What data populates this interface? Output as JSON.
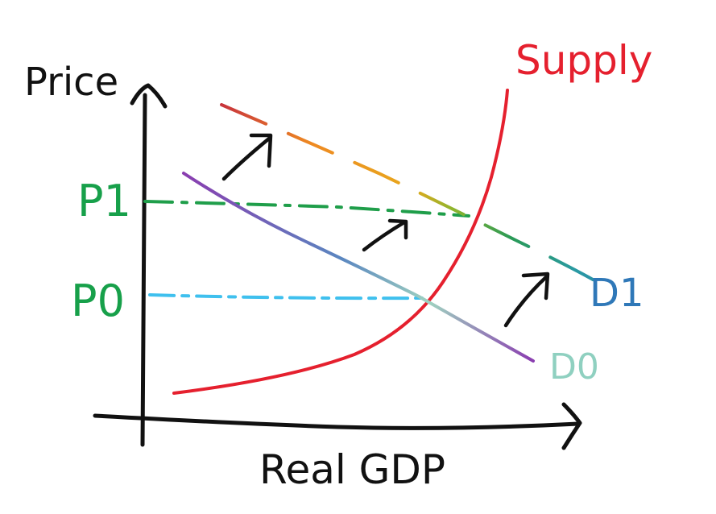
{
  "diagram": {
    "y_axis_label": "Price",
    "x_axis_label": "Real GDP",
    "supply_label": "Supply",
    "demand_initial_label": "D0",
    "demand_new_label": "D1",
    "price_initial_label": "P0",
    "price_new_label": "P1",
    "colors": {
      "axes": "#111111",
      "supply": "#e5202e",
      "price_labels": "#17a04a",
      "p1_guide": "#1f9e4a",
      "p0_guide": "#3fc0ee",
      "d0_label": "#8fd0c0",
      "d1_label": "#2f78b8"
    }
  }
}
